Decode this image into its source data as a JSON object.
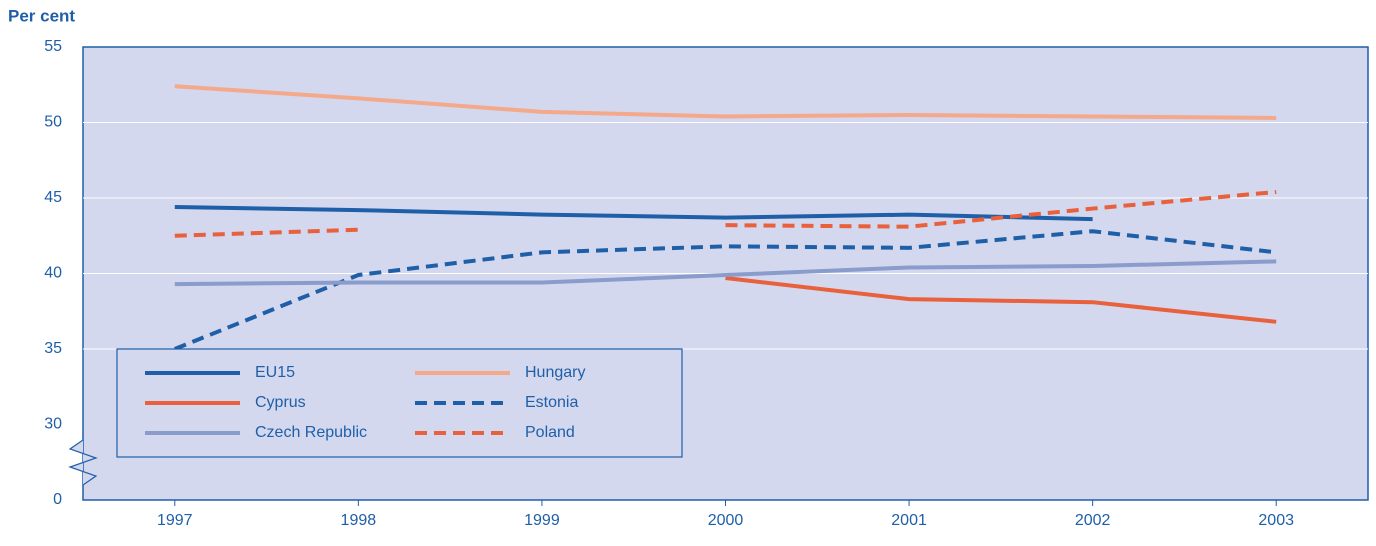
{
  "chart_data": {
    "type": "line",
    "y_label": "Per cent",
    "categories": [
      "1997",
      "1998",
      "1999",
      "2000",
      "2001",
      "2002",
      "2003"
    ],
    "series": [
      {
        "name": "EU15",
        "color": "#1f5fa8",
        "dashed": false,
        "values": [
          44.4,
          44.2,
          43.9,
          43.7,
          43.9,
          43.6,
          null
        ]
      },
      {
        "name": "Hungary",
        "color": "#f4a98a",
        "dashed": false,
        "values": [
          52.4,
          51.6,
          50.7,
          50.4,
          50.5,
          50.4,
          50.3
        ]
      },
      {
        "name": "Cyprus",
        "color": "#e8603c",
        "dashed": false,
        "values": [
          null,
          null,
          null,
          39.7,
          38.3,
          38.1,
          36.8
        ]
      },
      {
        "name": "Estonia",
        "color": "#1f5fa8",
        "dashed": true,
        "values": [
          35.0,
          39.9,
          41.4,
          41.8,
          41.7,
          42.8,
          41.4
        ]
      },
      {
        "name": "Czech Republic",
        "color": "#8a9ccc",
        "dashed": false,
        "values": [
          39.3,
          39.4,
          39.4,
          39.9,
          40.4,
          40.5,
          40.8
        ]
      },
      {
        "name": "Poland",
        "color": "#e8603c",
        "dashed": true,
        "values": [
          42.5,
          42.9,
          null,
          43.2,
          43.1,
          44.3,
          45.4
        ]
      }
    ],
    "ylim": [
      0,
      55
    ],
    "y_break": [
      0,
      30
    ],
    "yticks": [
      0,
      30,
      35,
      40,
      45,
      50,
      55
    ],
    "grid": true
  }
}
